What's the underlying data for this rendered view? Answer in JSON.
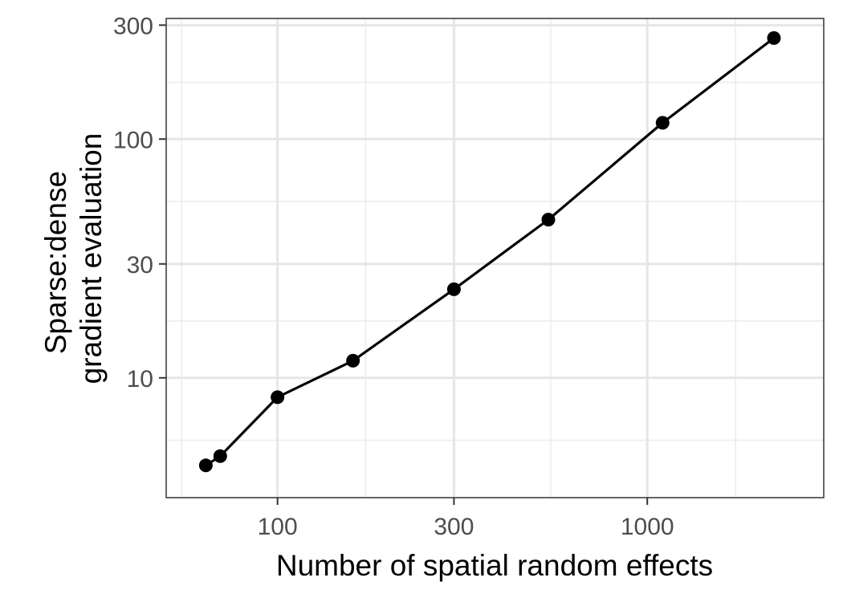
{
  "chart_data": {
    "type": "line",
    "title": "",
    "xlabel": "Number of spatial random effects",
    "ylabel_lines": [
      "Sparse:dense",
      "gradient evaluation"
    ],
    "x_scale": "log10",
    "y_scale": "log10",
    "xlim": [
      50,
      3000
    ],
    "ylim": [
      3.15,
      320
    ],
    "x_ticks": [
      {
        "value": 100,
        "label": "100"
      },
      {
        "value": 300,
        "label": "300"
      },
      {
        "value": 1000,
        "label": "1000"
      }
    ],
    "x_minor_ticks": [
      55,
      173,
      548,
      1732
    ],
    "y_ticks": [
      {
        "value": 10,
        "label": "10"
      },
      {
        "value": 30,
        "label": "30"
      },
      {
        "value": 100,
        "label": "100"
      },
      {
        "value": 300,
        "label": "300"
      }
    ],
    "y_minor_ticks": [
      5.48,
      17.3,
      54.8,
      173
    ],
    "grid": true,
    "legend": "none",
    "series": [
      {
        "color": "#000000",
        "points": [
          {
            "x": 64,
            "y": 4.3
          },
          {
            "x": 70,
            "y": 4.7
          },
          {
            "x": 100,
            "y": 8.3
          },
          {
            "x": 160,
            "y": 11.8
          },
          {
            "x": 300,
            "y": 23.5
          },
          {
            "x": 540,
            "y": 46
          },
          {
            "x": 1100,
            "y": 117
          },
          {
            "x": 2200,
            "y": 265
          }
        ]
      }
    ]
  }
}
